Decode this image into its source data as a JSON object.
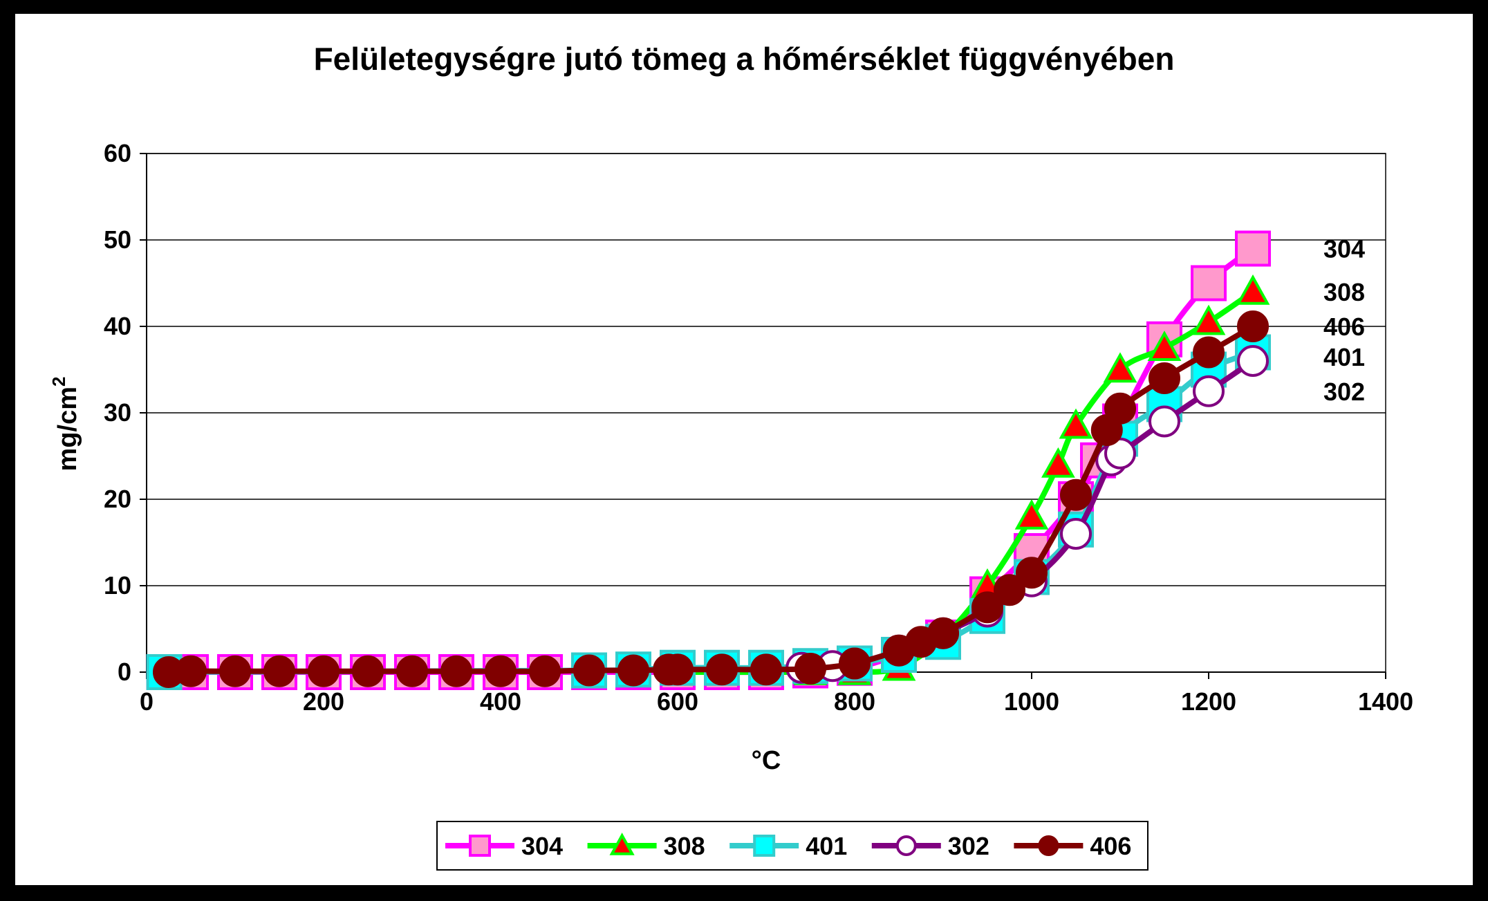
{
  "chart_data": {
    "type": "line",
    "title": "Felületegységre jutó tömeg a hőmérséklet függvényében",
    "xlabel": "°C",
    "ylabel": "mg/cm",
    "ylabel_sup": "2",
    "xlim": [
      0,
      1400
    ],
    "ylim": [
      0,
      60
    ],
    "xticks": [
      0,
      200,
      400,
      600,
      800,
      1000,
      1200,
      1400
    ],
    "yticks": [
      0,
      10,
      20,
      30,
      40,
      50,
      60
    ],
    "grid": "horizontal",
    "legend_position": "bottom",
    "series": [
      {
        "name": "304",
        "line_color": "#ff00ff",
        "marker": "square",
        "marker_fill": "#ff99cc",
        "marker_stroke": "#ff00ff",
        "x": [
          20,
          50,
          100,
          150,
          200,
          250,
          300,
          350,
          400,
          450,
          500,
          550,
          600,
          650,
          700,
          750,
          800,
          850,
          900,
          950,
          1000,
          1050,
          1075,
          1100,
          1150,
          1200,
          1250
        ],
        "y": [
          0,
          0,
          0,
          0,
          0,
          0,
          0,
          0,
          0,
          0,
          0,
          0,
          0,
          0,
          0,
          0.2,
          0.5,
          2,
          4,
          9,
          14,
          20,
          24.5,
          29,
          38.5,
          45,
          49
        ]
      },
      {
        "name": "308",
        "line_color": "#00ff00",
        "marker": "triangle",
        "marker_fill": "#ff0000",
        "marker_stroke": "#00ff00",
        "x": [
          600,
          650,
          700,
          750,
          800,
          850,
          900,
          950,
          1000,
          1030,
          1050,
          1100,
          1150,
          1200,
          1250
        ],
        "y": [
          0,
          0,
          0,
          0,
          0,
          0.5,
          4,
          10,
          18,
          24,
          28.5,
          35,
          37.5,
          40.5,
          44
        ]
      },
      {
        "name": "401",
        "line_color": "#33cccc",
        "marker": "square",
        "marker_fill": "#00ffff",
        "marker_stroke": "#33cccc",
        "x": [
          20,
          500,
          550,
          600,
          650,
          700,
          750,
          800,
          850,
          900,
          950,
          1000,
          1050,
          1100,
          1150,
          1200,
          1250
        ],
        "y": [
          0,
          0.2,
          0.3,
          0.5,
          0.5,
          0.5,
          0.7,
          1,
          2,
          3.5,
          6.5,
          11,
          16.5,
          27,
          31,
          35,
          37
        ]
      },
      {
        "name": "302",
        "line_color": "#800080",
        "marker": "circle",
        "marker_fill": "#ffffff",
        "marker_stroke": "#800080",
        "x": [
          740,
          775,
          800,
          850,
          900,
          950,
          1000,
          1050,
          1090,
          1100,
          1150,
          1200,
          1250
        ],
        "y": [
          0.5,
          0.7,
          1,
          2.5,
          4.5,
          7,
          10.5,
          16,
          24.5,
          25.3,
          29,
          32.5,
          36
        ]
      },
      {
        "name": "406",
        "line_color": "#800000",
        "marker": "circle",
        "marker_fill": "#800000",
        "marker_stroke": "#800000",
        "x": [
          25,
          50,
          100,
          150,
          200,
          250,
          300,
          350,
          400,
          450,
          500,
          550,
          590,
          600,
          650,
          700,
          750,
          800,
          850,
          875,
          900,
          950,
          975,
          1000,
          1050,
          1085,
          1100,
          1150,
          1200,
          1250
        ],
        "y": [
          0,
          0.1,
          0.1,
          0.1,
          0.1,
          0.1,
          0.1,
          0.1,
          0.1,
          0.1,
          0.2,
          0.2,
          0.3,
          0.3,
          0.3,
          0.3,
          0.4,
          1,
          2.5,
          3.5,
          4.5,
          7.5,
          9.5,
          11.5,
          20.5,
          28,
          30.5,
          34,
          37,
          40
        ]
      }
    ],
    "end_labels": [
      {
        "text": "304",
        "y": 49
      },
      {
        "text": "308",
        "y": 44
      },
      {
        "text": "406",
        "y": 40
      },
      {
        "text": "401",
        "y": 36.5
      },
      {
        "text": "302",
        "y": 32.5
      }
    ]
  }
}
